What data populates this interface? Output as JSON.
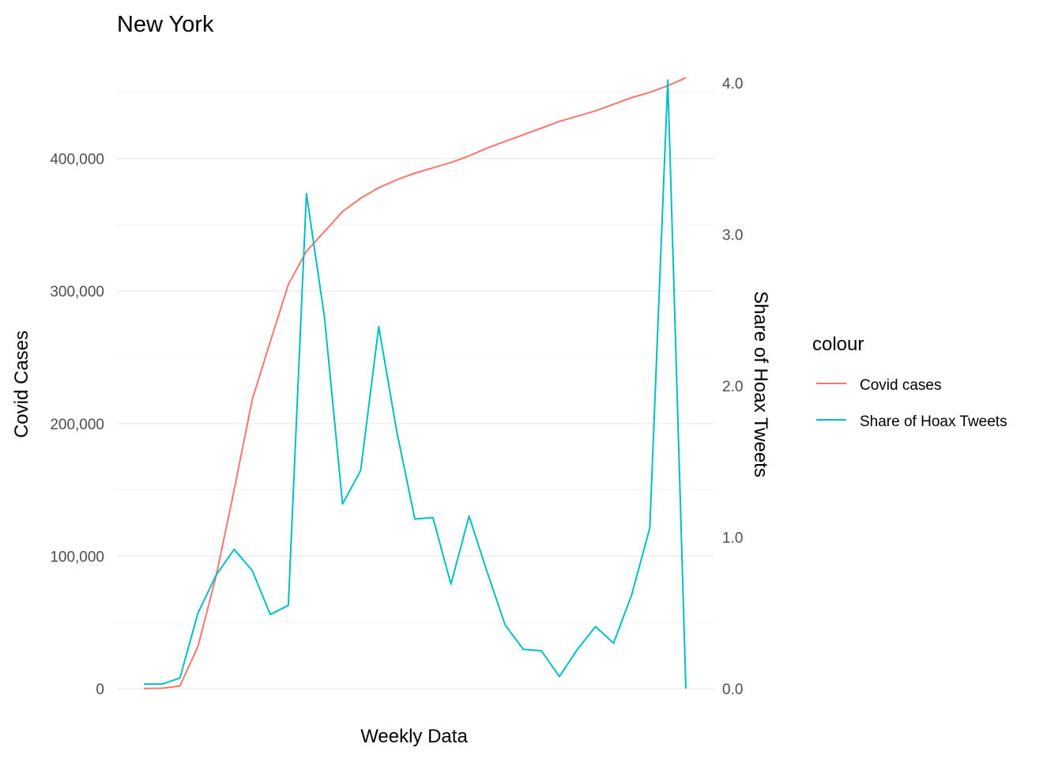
{
  "chart_data": {
    "type": "line",
    "title": "New York",
    "xlabel": "Weekly Data",
    "ylabel": "Covid Cases",
    "y2label": "Share of Hoax Tweets",
    "ylim": [
      0,
      460000
    ],
    "y2lim": [
      0,
      4.0
    ],
    "y_ticks": [
      0,
      100000,
      200000,
      300000,
      400000
    ],
    "y_tick_labels": [
      "0",
      "100,000",
      "200,000",
      "300,000",
      "400,000"
    ],
    "y2_ticks": [
      0,
      1,
      2,
      3,
      4
    ],
    "y2_tick_labels": [
      "0.0",
      "1.0",
      "2.0",
      "3.0",
      "4.0"
    ],
    "grid": true,
    "legend": {
      "title": "colour",
      "position": "right"
    },
    "x": [
      1,
      2,
      3,
      4,
      5,
      6,
      7,
      8,
      9,
      10,
      11,
      12,
      13,
      14,
      15,
      16,
      17,
      18,
      19,
      20,
      21,
      22,
      23,
      24,
      25,
      26,
      27,
      28,
      29,
      30,
      31
    ],
    "series": [
      {
        "name": "Covid cases",
        "axis": "left",
        "color": "#F8766D",
        "values": [
          200,
          300,
          2000,
          32000,
          85000,
          150000,
          218000,
          262000,
          305000,
          330000,
          345000,
          360000,
          370000,
          378000,
          384000,
          389000,
          393000,
          397000,
          402000,
          408000,
          413000,
          418000,
          423000,
          428000,
          432000,
          436000,
          441000,
          446000,
          450000,
          455000,
          461000
        ]
      },
      {
        "name": "Share of Hoax Tweets",
        "axis": "right",
        "color": "#00BFC4",
        "values": [
          0.03,
          0.03,
          0.07,
          0.5,
          0.75,
          0.92,
          0.78,
          0.49,
          0.55,
          3.27,
          2.45,
          1.22,
          1.44,
          2.39,
          1.7,
          1.12,
          1.13,
          0.69,
          1.14,
          0.77,
          0.42,
          0.26,
          0.25,
          0.08,
          0.26,
          0.41,
          0.3,
          0.62,
          1.06,
          4.02,
          0.0
        ]
      }
    ]
  }
}
